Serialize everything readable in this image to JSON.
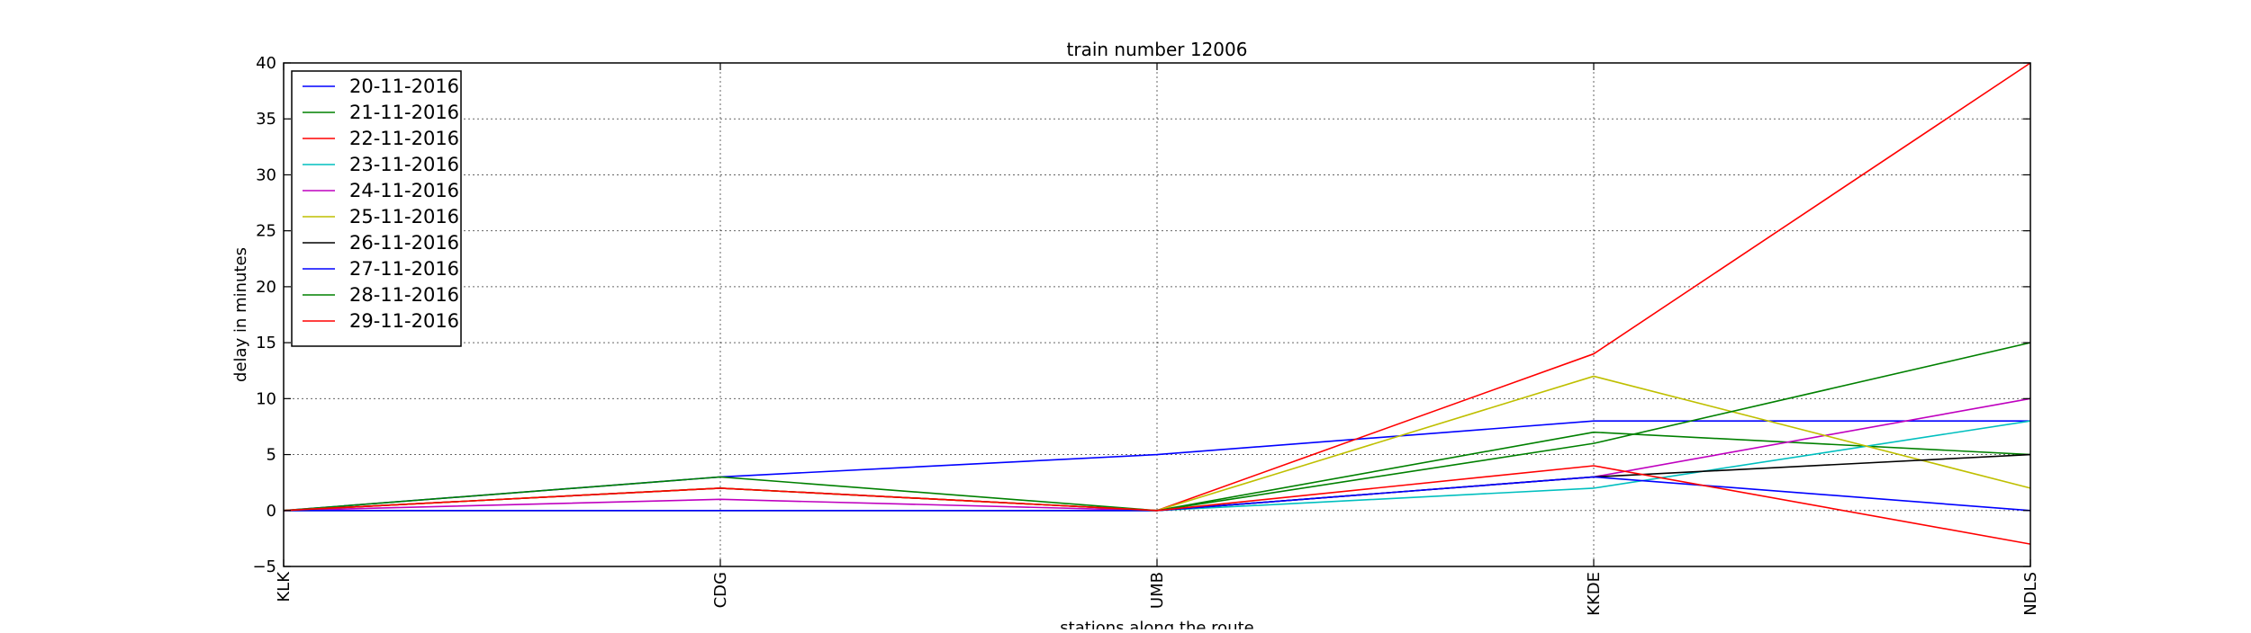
{
  "chart_data": {
    "type": "line",
    "title": "train number 12006",
    "xlabel": "stations along the route",
    "ylabel": "delay in minutes",
    "categories": [
      "KLK",
      "CDG",
      "UMB",
      "KKDE",
      "NDLS"
    ],
    "ylim": [
      -5,
      40
    ],
    "yticks": [
      -5,
      0,
      5,
      10,
      15,
      20,
      25,
      30,
      35,
      40
    ],
    "grid": true,
    "legend": "top-left",
    "series": [
      {
        "name": "20-11-2016",
        "color": "#0000ff",
        "values": [
          0,
          3,
          5,
          8,
          8
        ]
      },
      {
        "name": "21-11-2016",
        "color": "#008000",
        "values": [
          0,
          3,
          0,
          7,
          5
        ]
      },
      {
        "name": "22-11-2016",
        "color": "#ff0000",
        "values": [
          0,
          2,
          0,
          14,
          40
        ]
      },
      {
        "name": "23-11-2016",
        "color": "#00bfbf",
        "values": [
          0,
          0,
          0,
          2,
          8
        ]
      },
      {
        "name": "24-11-2016",
        "color": "#bf00bf",
        "values": [
          0,
          1,
          0,
          3,
          10
        ]
      },
      {
        "name": "25-11-2016",
        "color": "#bfbf00",
        "values": [
          0,
          2,
          0,
          12,
          2
        ]
      },
      {
        "name": "26-11-2016",
        "color": "#000000",
        "values": [
          0,
          0,
          0,
          3,
          5
        ]
      },
      {
        "name": "27-11-2016",
        "color": "#0000ff",
        "values": [
          0,
          0,
          0,
          3,
          0
        ]
      },
      {
        "name": "28-11-2016",
        "color": "#008000",
        "values": [
          0,
          2,
          0,
          6,
          15
        ]
      },
      {
        "name": "29-11-2016",
        "color": "#ff0000",
        "values": [
          0,
          2,
          0,
          4,
          -3
        ]
      }
    ]
  }
}
